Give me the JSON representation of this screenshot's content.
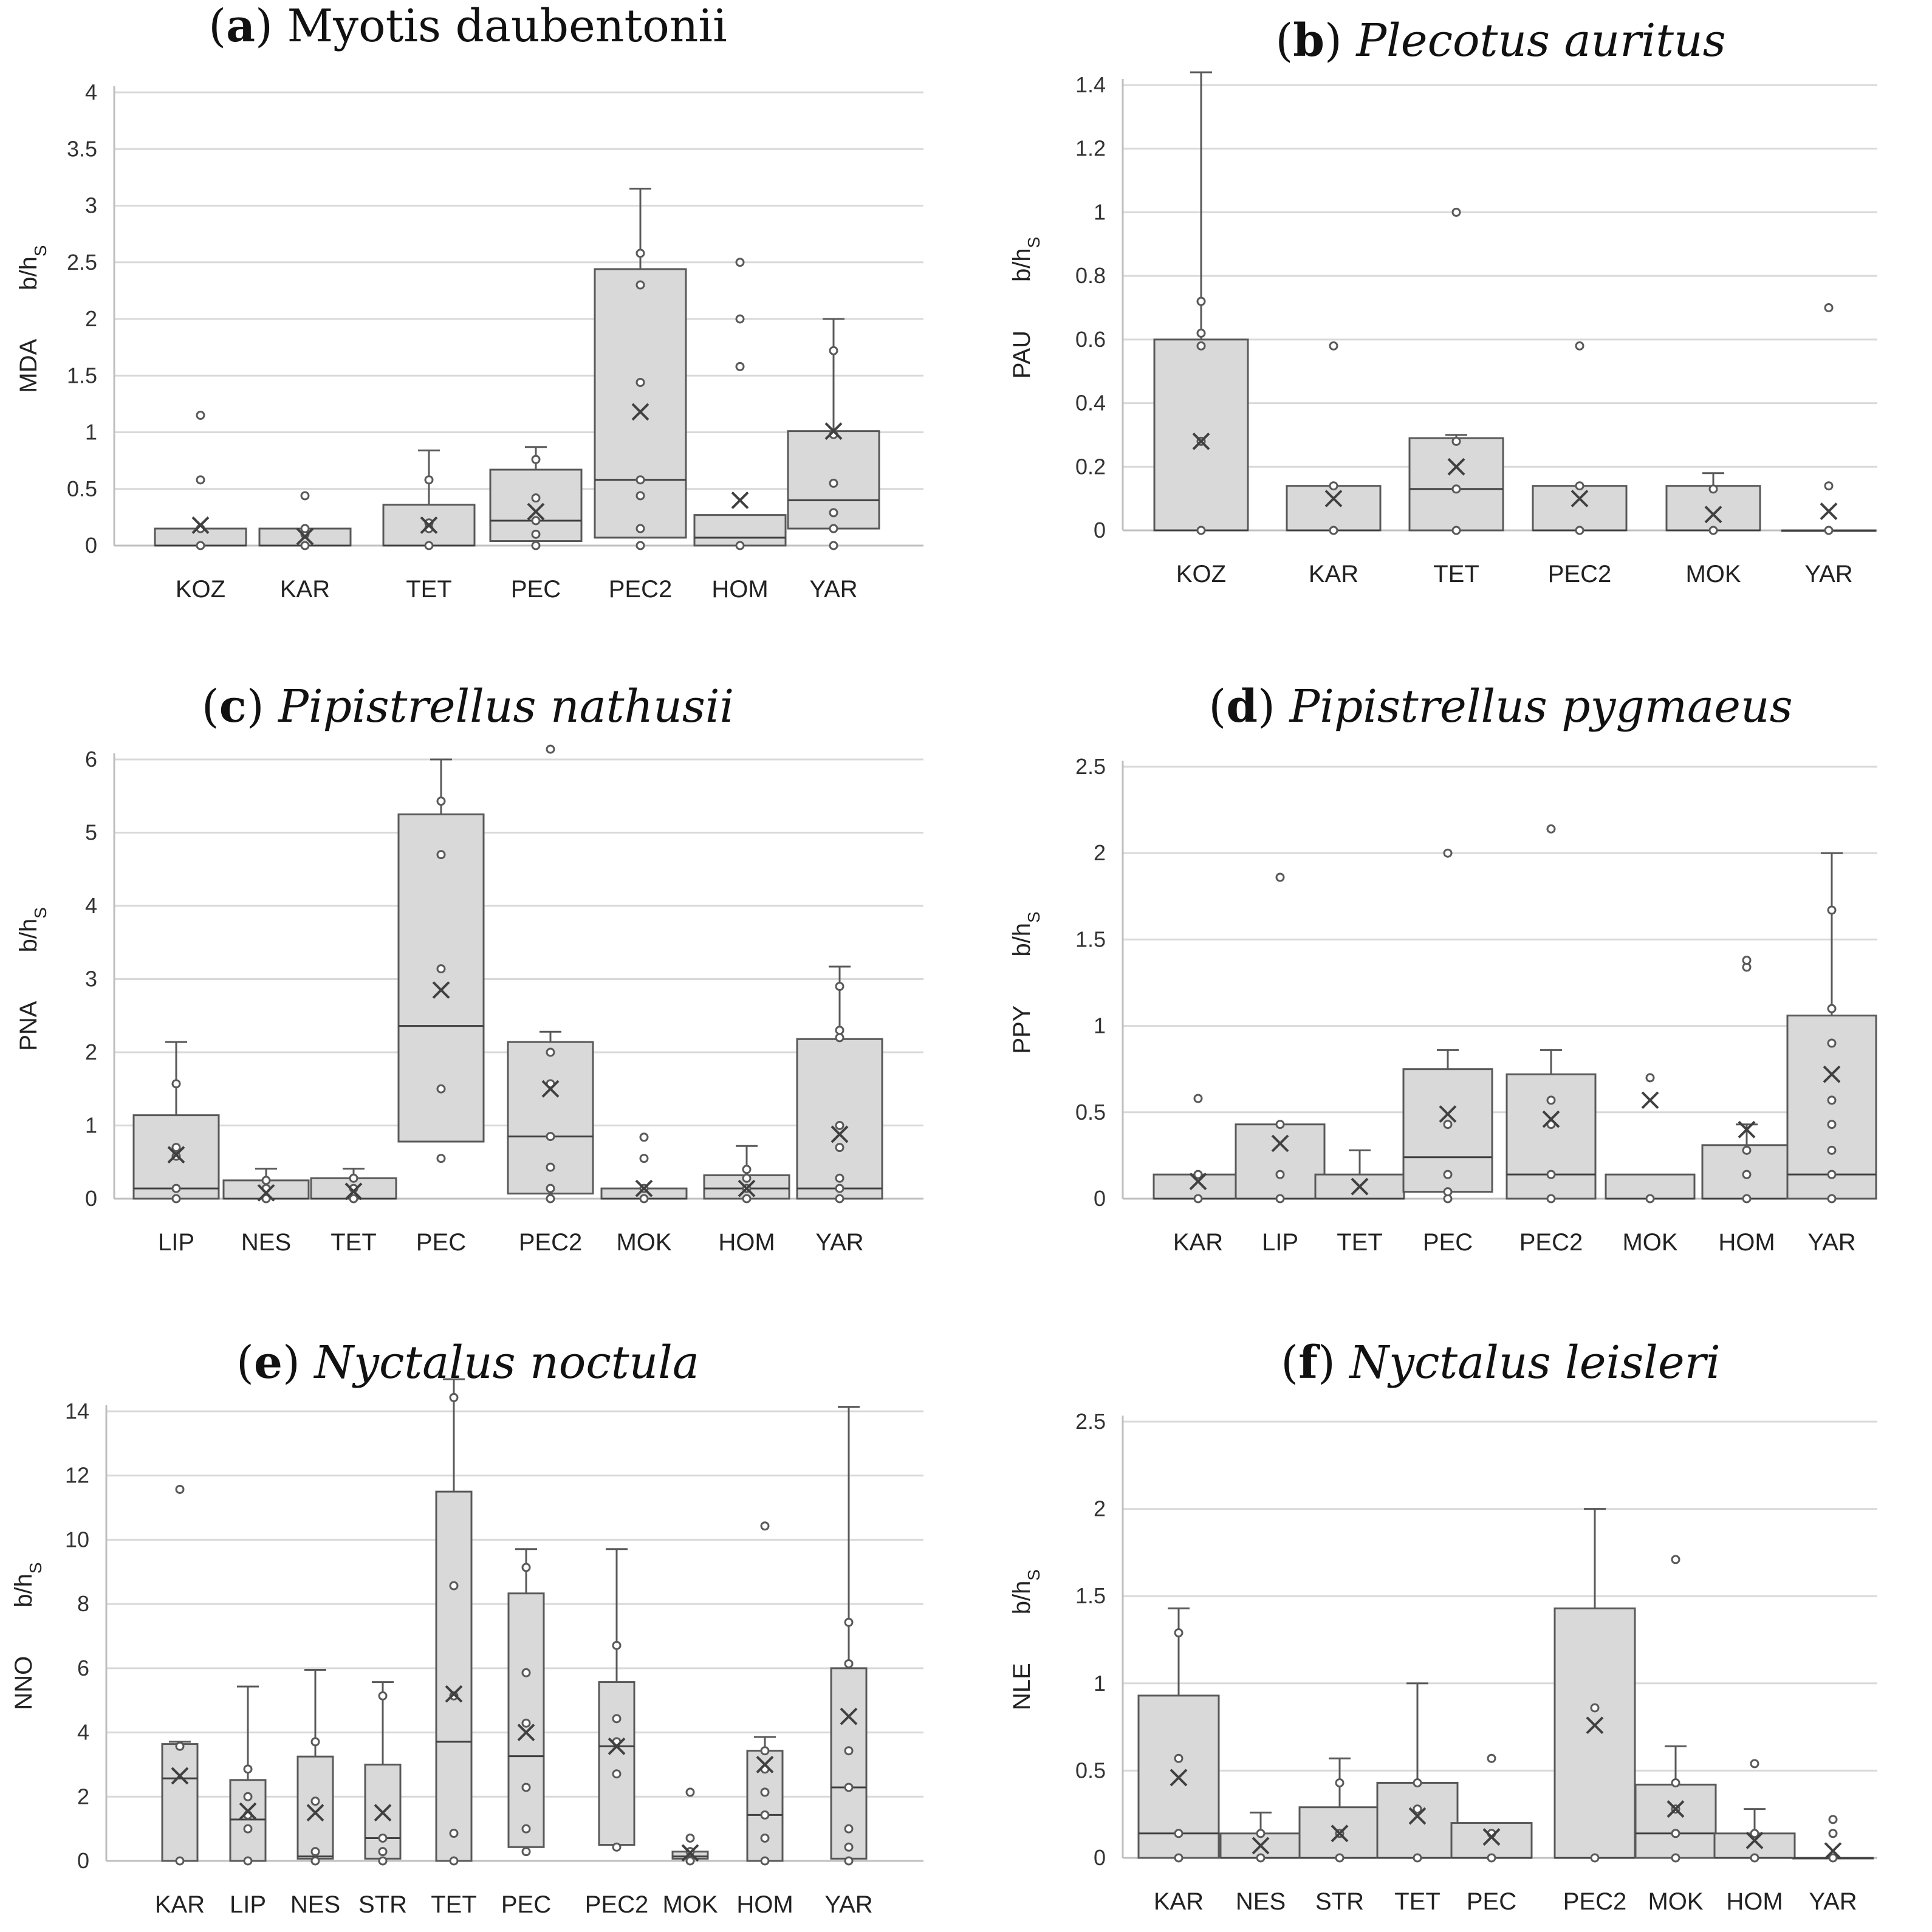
{
  "chart_data": [
    {
      "type": "box",
      "title_letter": "a",
      "title_species": "Myotis daubentonii",
      "title_italic": false,
      "ylabel_main": "MDA",
      "ylabel_unit": "b/h",
      "ylabel_sub": "S",
      "ylim": [
        0,
        4
      ],
      "yticks": [
        0,
        0.5,
        1,
        1.5,
        2,
        2.5,
        3,
        3.5,
        4
      ],
      "ytick_labels": [
        "0",
        "0.5",
        "1",
        "1.5",
        "2",
        "2.5",
        "3",
        "3.5",
        "4"
      ],
      "categories": [
        "KOZ",
        "KAR",
        "TET",
        "PEC",
        "PEC2",
        "HOM",
        "YAR"
      ],
      "boxes": [
        {
          "q1": 0,
          "median": 0,
          "q3": 0.15,
          "whisker_low": 0,
          "whisker_high": 0.15,
          "mean": 0.18,
          "points": [
            0,
            0.15,
            0.58,
            1.15
          ]
        },
        {
          "q1": 0,
          "median": 0,
          "q3": 0.15,
          "whisker_low": 0,
          "whisker_high": 0.15,
          "mean": 0.08,
          "points": [
            0,
            0.1,
            0.15,
            0.44
          ]
        },
        {
          "q1": 0,
          "median": 0,
          "q3": 0.36,
          "whisker_low": 0,
          "whisker_high": 0.84,
          "mean": 0.18,
          "points": [
            0,
            0.15,
            0.2,
            0.58
          ]
        },
        {
          "q1": 0.04,
          "median": 0.22,
          "q3": 0.67,
          "whisker_low": 0,
          "whisker_high": 0.87,
          "mean": 0.3,
          "points": [
            0,
            0.1,
            0.22,
            0.42,
            0.76
          ]
        },
        {
          "q1": 0.07,
          "median": 0.58,
          "q3": 2.44,
          "whisker_low": 0,
          "whisker_high": 3.15,
          "mean": 1.18,
          "points": [
            0,
            0.15,
            0.44,
            0.58,
            1.44,
            2.3,
            2.58
          ]
        },
        {
          "q1": 0,
          "median": 0.07,
          "q3": 0.27,
          "whisker_low": 0,
          "whisker_high": 0.27,
          "mean": 0.4,
          "points": [
            0,
            1.58,
            2.0,
            2.5
          ]
        },
        {
          "q1": 0.15,
          "median": 0.4,
          "q3": 1.01,
          "whisker_low": 0,
          "whisker_high": 2.0,
          "mean": 1.01,
          "points": [
            0,
            0.15,
            0.29,
            0.55,
            0.98,
            1.72
          ]
        }
      ]
    },
    {
      "type": "box",
      "title_letter": "b",
      "title_species": "Plecotus auritus",
      "title_italic": true,
      "ylabel_main": "PAU",
      "ylabel_unit": "b/h",
      "ylabel_sub": "S",
      "ylim": [
        0,
        1.5
      ],
      "yticks": [
        0,
        0.2,
        0.4,
        0.6,
        0.8,
        1,
        1.2,
        1.4
      ],
      "ytick_labels": [
        "0",
        "0.2",
        "0.4",
        "0.6",
        "0.8",
        "1",
        "1.2",
        "1.4"
      ],
      "categories": [
        "KOZ",
        "KAR",
        "TET",
        "PEC2",
        "MOK",
        "YAR"
      ],
      "boxes": [
        {
          "q1": 0,
          "median": 0,
          "q3": 0.6,
          "whisker_low": 0,
          "whisker_high": 1.44,
          "mean": 0.28,
          "points": [
            0,
            0.28,
            0.58,
            0.62,
            0.72
          ]
        },
        {
          "q1": 0,
          "median": 0,
          "q3": 0.14,
          "whisker_low": 0,
          "whisker_high": 0.14,
          "mean": 0.1,
          "points": [
            0,
            0.14,
            0.58
          ]
        },
        {
          "q1": 0,
          "median": 0.13,
          "q3": 0.29,
          "whisker_low": 0,
          "whisker_high": 0.3,
          "mean": 0.2,
          "points": [
            0,
            0.13,
            0.28,
            1.0
          ]
        },
        {
          "q1": 0,
          "median": 0,
          "q3": 0.14,
          "whisker_low": 0,
          "whisker_high": 0.14,
          "mean": 0.1,
          "points": [
            0,
            0.14,
            0.58
          ]
        },
        {
          "q1": 0,
          "median": 0,
          "q3": 0.14,
          "whisker_low": 0,
          "whisker_high": 0.18,
          "mean": 0.05,
          "points": [
            0,
            0.13
          ]
        },
        {
          "q1": 0,
          "median": 0,
          "q3": 0,
          "whisker_low": 0,
          "whisker_high": 0,
          "mean": 0.06,
          "points": [
            0,
            0.14,
            0.7
          ]
        }
      ]
    },
    {
      "type": "box",
      "title_letter": "c",
      "title_species": "Pipistrellus nathusii",
      "title_italic": true,
      "ylabel_main": "PNA",
      "ylabel_unit": "b/h",
      "ylabel_sub": "S",
      "ylim": [
        0,
        6.5
      ],
      "yticks": [
        0,
        1,
        2,
        3,
        4,
        5,
        6
      ],
      "ytick_labels": [
        "0",
        "1",
        "2",
        "3",
        "4",
        "5",
        "6"
      ],
      "categories": [
        "LIP",
        "NES",
        "TET",
        "PEC",
        "PEC2",
        "MOK",
        "HOM",
        "YAR"
      ],
      "boxes": [
        {
          "q1": 0,
          "median": 0.14,
          "q3": 1.14,
          "whisker_low": 0,
          "whisker_high": 2.14,
          "mean": 0.6,
          "points": [
            0,
            0.14,
            0.58,
            0.7,
            1.57
          ]
        },
        {
          "q1": 0,
          "median": 0,
          "q3": 0.25,
          "whisker_low": 0,
          "whisker_high": 0.41,
          "mean": 0.08,
          "points": [
            0,
            0.14,
            0.25
          ]
        },
        {
          "q1": 0,
          "median": 0,
          "q3": 0.28,
          "whisker_low": 0,
          "whisker_high": 0.41,
          "mean": 0.1,
          "points": [
            0,
            0.14,
            0.28
          ]
        },
        {
          "q1": 0.78,
          "median": 2.36,
          "q3": 5.25,
          "whisker_low": 0,
          "whisker_high": 6.0,
          "mean": 2.85,
          "points": [
            0.55,
            1.5,
            3.14,
            4.7,
            5.43
          ]
        },
        {
          "q1": 0.07,
          "median": 0.85,
          "q3": 2.14,
          "whisker_low": 0,
          "whisker_high": 2.28,
          "mean": 1.5,
          "points": [
            0,
            0.14,
            0.43,
            0.85,
            1.57,
            2.0,
            6.14
          ]
        },
        {
          "q1": 0,
          "median": 0,
          "q3": 0.14,
          "whisker_low": 0,
          "whisker_high": 0.14,
          "mean": 0.14,
          "points": [
            0,
            0.14,
            0.55,
            0.84
          ]
        },
        {
          "q1": 0,
          "median": 0.14,
          "q3": 0.32,
          "whisker_low": 0,
          "whisker_high": 0.72,
          "mean": 0.14,
          "points": [
            0,
            0.14,
            0.28,
            0.4
          ]
        },
        {
          "q1": 0,
          "median": 0.14,
          "q3": 2.18,
          "whisker_low": 0,
          "whisker_high": 3.17,
          "mean": 0.88,
          "points": [
            0,
            0.14,
            0.28,
            0.7,
            1.0,
            2.2,
            2.3,
            2.9
          ]
        }
      ]
    },
    {
      "type": "box",
      "title_letter": "d",
      "title_species": "Pipistrellus pygmaeus",
      "title_italic": true,
      "ylabel_main": "PPY",
      "ylabel_unit": "b/h",
      "ylabel_sub": "S",
      "ylim": [
        0,
        2.5
      ],
      "yticks": [
        0,
        0.5,
        1,
        1.5,
        2,
        2.5
      ],
      "ytick_labels": [
        "0",
        "0.5",
        "1",
        "1.5",
        "2",
        "2.5"
      ],
      "categories": [
        "KAR",
        "LIP",
        "TET",
        "PEC",
        "PEC2",
        "MOK",
        "HOM",
        "YAR"
      ],
      "boxes": [
        {
          "q1": 0,
          "median": 0,
          "q3": 0.14,
          "whisker_low": 0,
          "whisker_high": 0.14,
          "mean": 0.1,
          "points": [
            0,
            0.14,
            0.58
          ]
        },
        {
          "q1": 0,
          "median": 0,
          "q3": 0.43,
          "whisker_low": 0,
          "whisker_high": 0.43,
          "mean": 0.32,
          "points": [
            0,
            0.14,
            0.43,
            1.86
          ]
        },
        {
          "q1": 0,
          "median": 0,
          "q3": 0.14,
          "whisker_low": 0,
          "whisker_high": 0.28,
          "mean": 0.07,
          "points": []
        },
        {
          "q1": 0.04,
          "median": 0.24,
          "q3": 0.75,
          "whisker_low": 0,
          "whisker_high": 0.86,
          "mean": 0.49,
          "points": [
            0,
            0.04,
            0.14,
            0.43,
            2.0
          ]
        },
        {
          "q1": 0,
          "median": 0.14,
          "q3": 0.72,
          "whisker_low": 0,
          "whisker_high": 0.86,
          "mean": 0.46,
          "points": [
            0,
            0.14,
            0.43,
            0.57,
            2.14
          ]
        },
        {
          "q1": 0,
          "median": 0,
          "q3": 0.14,
          "whisker_low": 0,
          "whisker_high": 0.14,
          "mean": 0.57,
          "points": [
            0,
            0.7
          ]
        },
        {
          "q1": 0,
          "median": 0,
          "q3": 0.31,
          "whisker_low": 0,
          "whisker_high": 0.43,
          "mean": 0.4,
          "points": [
            0,
            0.14,
            0.28,
            1.34,
            1.38
          ]
        },
        {
          "q1": 0,
          "median": 0.14,
          "q3": 1.06,
          "whisker_low": 0,
          "whisker_high": 2.0,
          "mean": 0.72,
          "points": [
            0,
            0.14,
            0.28,
            0.43,
            0.57,
            0.9,
            1.1,
            1.67
          ]
        }
      ]
    },
    {
      "type": "box",
      "title_letter": "e",
      "title_species": "Nyctalus noctula",
      "title_italic": true,
      "ylabel_main": "NNO",
      "ylabel_unit": "b/h",
      "ylabel_sub": "S",
      "ylim": [
        0,
        15
      ],
      "yticks": [
        0,
        2,
        4,
        6,
        8,
        10,
        12,
        14
      ],
      "ytick_labels": [
        "0",
        "2",
        "4",
        "6",
        "8",
        "10",
        "12",
        "14"
      ],
      "categories": [
        "KAR",
        "LIP",
        "NES",
        "STR",
        "TET",
        "PEC",
        "PEC2",
        "MOK",
        "HOM",
        "YAR"
      ],
      "boxes": [
        {
          "q1": 0,
          "median": 2.57,
          "q3": 3.64,
          "whisker_low": 0,
          "whisker_high": 3.71,
          "mean": 2.65,
          "points": [
            0,
            3.57,
            11.57
          ]
        },
        {
          "q1": 0,
          "median": 1.29,
          "q3": 2.52,
          "whisker_low": 0,
          "whisker_high": 5.43,
          "mean": 1.55,
          "points": [
            0,
            1.0,
            1.43,
            2.0,
            2.86
          ]
        },
        {
          "q1": 0.07,
          "median": 0.14,
          "q3": 3.25,
          "whisker_low": 0,
          "whisker_high": 5.95,
          "mean": 1.5,
          "points": [
            0,
            0.29,
            1.86,
            3.71
          ]
        },
        {
          "q1": 0.07,
          "median": 0.71,
          "q3": 3.0,
          "whisker_low": 0,
          "whisker_high": 5.57,
          "mean": 1.5,
          "points": [
            0,
            0.29,
            0.71,
            5.14
          ]
        },
        {
          "q1": 0,
          "median": 3.71,
          "q3": 11.5,
          "whisker_low": 0,
          "whisker_high": 15.0,
          "mean": 5.2,
          "points": [
            0,
            0.86,
            5.14,
            8.57,
            14.43
          ]
        },
        {
          "q1": 0.43,
          "median": 3.26,
          "q3": 8.33,
          "whisker_low": 0,
          "whisker_high": 9.71,
          "mean": 4.0,
          "points": [
            0.29,
            1.0,
            2.29,
            4.29,
            5.86,
            9.14
          ]
        },
        {
          "q1": 0.5,
          "median": 3.57,
          "q3": 5.57,
          "whisker_low": 0,
          "whisker_high": 9.71,
          "mean": 3.57,
          "points": [
            0.43,
            2.71,
            3.71,
            4.43,
            6.71
          ]
        },
        {
          "q1": 0.07,
          "median": 0.14,
          "q3": 0.29,
          "whisker_low": 0,
          "whisker_high": 0.29,
          "mean": 0.25,
          "points": [
            0,
            0.29,
            0.71,
            2.14
          ]
        },
        {
          "q1": 0,
          "median": 1.43,
          "q3": 3.43,
          "whisker_low": 0,
          "whisker_high": 3.86,
          "mean": 3.0,
          "points": [
            0,
            0.71,
            1.43,
            2.14,
            2.86,
            3.43,
            10.43
          ]
        },
        {
          "q1": 0.07,
          "median": 2.29,
          "q3": 6.0,
          "whisker_low": 0,
          "whisker_high": 14.14,
          "mean": 4.5,
          "points": [
            0,
            0.43,
            1.0,
            2.29,
            3.43,
            6.14,
            7.43
          ]
        }
      ]
    },
    {
      "type": "box",
      "title_letter": "f",
      "title_species": "Nyctalus leisleri",
      "title_italic": true,
      "ylabel_main": "NLE",
      "ylabel_unit": "b/h",
      "ylabel_sub": "S",
      "ylim": [
        0,
        2.5
      ],
      "yticks": [
        0,
        0.5,
        1,
        1.5,
        2,
        2.5
      ],
      "ytick_labels": [
        "0",
        "0.5",
        "1",
        "1.5",
        "2",
        "2.5"
      ],
      "categories": [
        "KAR",
        "NES",
        "STR",
        "TET",
        "PEC",
        "PEC2",
        "MOK",
        "HOM",
        "YAR"
      ],
      "boxes": [
        {
          "q1": 0,
          "median": 0.14,
          "q3": 0.93,
          "whisker_low": 0,
          "whisker_high": 1.43,
          "mean": 0.46,
          "points": [
            0,
            0.14,
            0.57,
            1.29
          ]
        },
        {
          "q1": 0,
          "median": 0,
          "q3": 0.14,
          "whisker_low": 0,
          "whisker_high": 0.26,
          "mean": 0.07,
          "points": [
            0,
            0.14
          ]
        },
        {
          "q1": 0,
          "median": 0,
          "q3": 0.29,
          "whisker_low": 0,
          "whisker_high": 0.57,
          "mean": 0.14,
          "points": [
            0,
            0.14,
            0.43
          ]
        },
        {
          "q1": 0,
          "median": 0,
          "q3": 0.43,
          "whisker_low": 0,
          "whisker_high": 1.0,
          "mean": 0.24,
          "points": [
            0,
            0.28,
            0.43
          ]
        },
        {
          "q1": 0,
          "median": 0,
          "q3": 0.2,
          "whisker_low": 0,
          "whisker_high": 0.2,
          "mean": 0.12,
          "points": [
            0,
            0.14,
            0.57
          ]
        },
        {
          "q1": 0,
          "median": 0,
          "q3": 1.43,
          "whisker_low": 0,
          "whisker_high": 2.0,
          "mean": 0.76,
          "points": [
            0,
            0.86
          ]
        },
        {
          "q1": 0,
          "median": 0.14,
          "q3": 0.42,
          "whisker_low": 0,
          "whisker_high": 0.64,
          "mean": 0.28,
          "points": [
            0,
            0.14,
            0.28,
            0.43,
            1.71
          ]
        },
        {
          "q1": 0,
          "median": 0,
          "q3": 0.14,
          "whisker_low": 0,
          "whisker_high": 0.28,
          "mean": 0.1,
          "points": [
            0,
            0.14,
            0.54
          ]
        },
        {
          "q1": 0,
          "median": 0,
          "q3": 0,
          "whisker_low": 0,
          "whisker_high": 0,
          "mean": 0.04,
          "points": [
            0,
            0.14,
            0.22
          ]
        }
      ]
    }
  ]
}
